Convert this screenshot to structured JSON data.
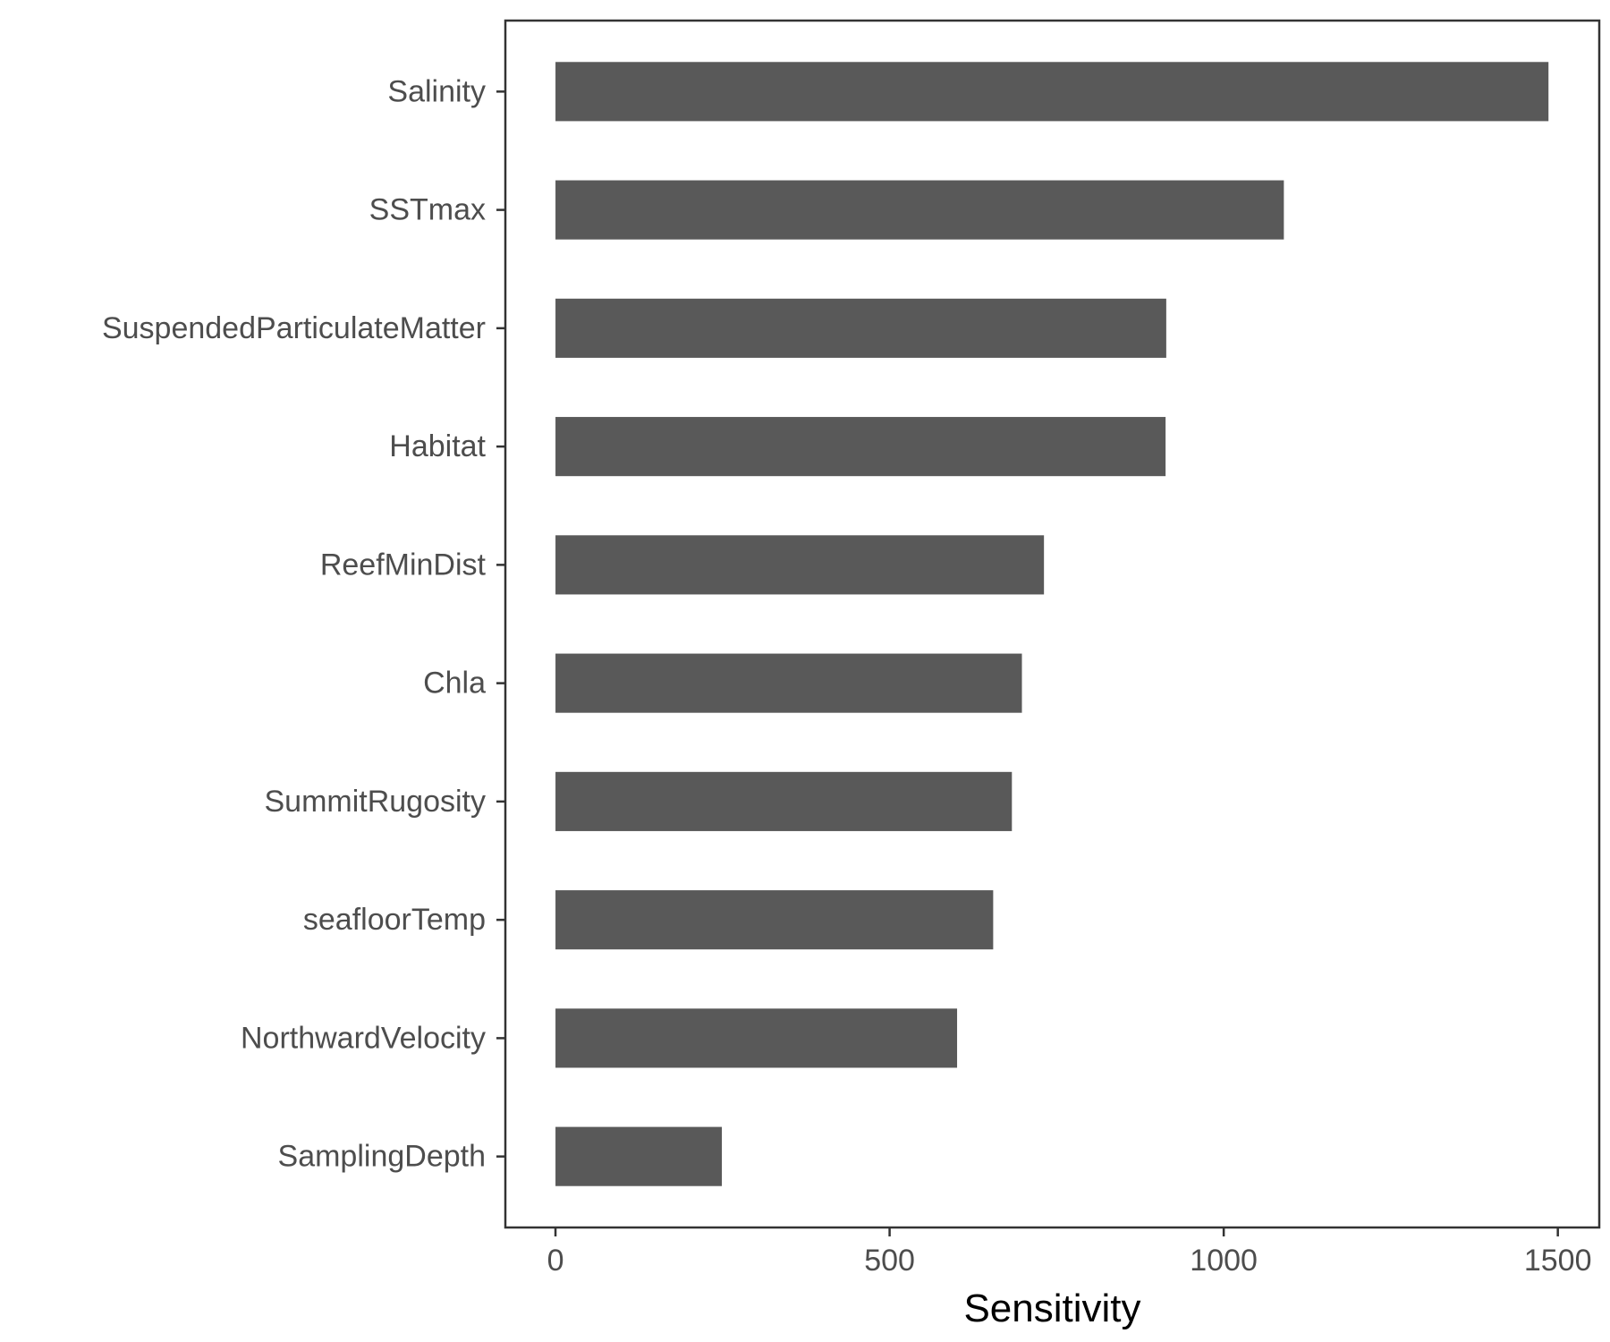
{
  "chart_data": {
    "type": "bar",
    "orientation": "horizontal",
    "categories": [
      "Salinity",
      "SSTmax",
      "SuspendedParticulateMatter",
      "Habitat",
      "ReefMinDist",
      "Chla",
      "SummitRugosity",
      "seafloorTemp",
      "NorthwardVelocity",
      "SamplingDepth"
    ],
    "values": [
      1486,
      1090,
      914,
      913,
      731,
      698,
      683,
      655,
      601,
      249
    ],
    "title": "",
    "xlabel": "Sensitivity",
    "ylabel": "",
    "xlim": [
      -75,
      1562
    ],
    "x_ticks": [
      0,
      500,
      1000,
      1500
    ],
    "x_tick_labels": [
      "0",
      "500",
      "1000",
      "1500"
    ],
    "grid": false,
    "legend": "none",
    "bar_color": "#595959",
    "panel_border_color": "#333333",
    "tick_label_color": "#4d4d4d",
    "axis_title_color": "#000000"
  }
}
